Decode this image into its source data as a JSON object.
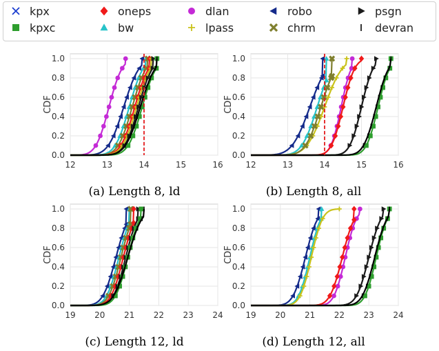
{
  "legend": {
    "entries": [
      {
        "key": "kpx",
        "label": "kpx",
        "color": "#1a3ccf",
        "marker": "x"
      },
      {
        "key": "kpxc",
        "label": "kpxc",
        "color": "#2e9e2e",
        "marker": "square"
      },
      {
        "key": "oneps",
        "label": "oneps",
        "color": "#f01a1a",
        "marker": "diamond"
      },
      {
        "key": "bw",
        "label": "bw",
        "color": "#27c3c9",
        "marker": "triangle-up"
      },
      {
        "key": "dlan",
        "label": "dlan",
        "color": "#c42ad6",
        "marker": "circle"
      },
      {
        "key": "lpass",
        "label": "lpass",
        "color": "#c9c21a",
        "marker": "plus"
      },
      {
        "key": "robo",
        "label": "robo",
        "color": "#142a8a",
        "marker": "triangle-left"
      },
      {
        "key": "chrm",
        "label": "chrm",
        "color": "#7f7f2e",
        "marker": "x-thick"
      },
      {
        "key": "psgn",
        "label": "psgn",
        "color": "#1a1a1a",
        "marker": "triangle-right"
      },
      {
        "key": "devran",
        "label": "devran",
        "color": "#000000",
        "marker": "vline"
      }
    ]
  },
  "chart_data": [
    {
      "type": "line",
      "caption": "(a) Length 8, ld",
      "ylabel": "CDF",
      "xlim": [
        12,
        16
      ],
      "ylim": [
        0,
        1.05
      ],
      "xticks": [
        "12",
        "13",
        "14",
        "15",
        "16"
      ],
      "yticks": [
        "0.0",
        "0.2",
        "0.4",
        "0.6",
        "0.8",
        "1.0"
      ],
      "reference_line": {
        "x": 14,
        "color": "#e31a1c"
      },
      "series": [
        {
          "key": "dlan",
          "mu": 13.05,
          "sigma": 0.28,
          "max": 13.5
        },
        {
          "key": "robo",
          "mu": 13.45,
          "sigma": 0.33,
          "max": 13.95
        },
        {
          "key": "bw",
          "mu": 13.6,
          "sigma": 0.3,
          "max": 14.05
        },
        {
          "key": "chrm",
          "mu": 13.68,
          "sigma": 0.3,
          "max": 14.1
        },
        {
          "key": "oneps",
          "mu": 13.75,
          "sigma": 0.3,
          "max": 14.15
        },
        {
          "key": "lpass",
          "mu": 13.8,
          "sigma": 0.3,
          "max": 14.2
        },
        {
          "key": "psgn",
          "mu": 13.85,
          "sigma": 0.3,
          "max": 14.25
        },
        {
          "key": "kpxc",
          "mu": 13.95,
          "sigma": 0.3,
          "max": 14.35
        },
        {
          "key": "devran",
          "mu": 13.9,
          "sigma": 0.32,
          "max": 14.35
        }
      ]
    },
    {
      "type": "line",
      "caption": "(b) Length 8, all",
      "ylabel": "CDF",
      "xlim": [
        12,
        16
      ],
      "ylim": [
        0,
        1.05
      ],
      "xticks": [
        "12",
        "13",
        "14",
        "15",
        "16"
      ],
      "yticks": [
        "0.0",
        "0.2",
        "0.4",
        "0.6",
        "0.8",
        "1.0"
      ],
      "reference_line": {
        "x": 14,
        "color": "#e31a1c"
      },
      "series": [
        {
          "key": "robo",
          "mu": 13.6,
          "sigma": 0.38,
          "max": 13.95
        },
        {
          "key": "bw",
          "mu": 13.8,
          "sigma": 0.33,
          "max": 14.05
        },
        {
          "key": "lpass",
          "mu": 14.0,
          "sigma": 0.38,
          "max": 14.6
        },
        {
          "key": "chrm",
          "mu": 13.9,
          "sigma": 0.33,
          "max": 14.2
        },
        {
          "key": "dlan",
          "mu": 14.45,
          "sigma": 0.22,
          "max": 14.75
        },
        {
          "key": "oneps",
          "mu": 14.5,
          "sigma": 0.25,
          "max": 15.0
        },
        {
          "key": "psgn",
          "mu": 15.0,
          "sigma": 0.25,
          "max": 15.4
        },
        {
          "key": "kpxc",
          "mu": 15.45,
          "sigma": 0.25,
          "max": 15.8
        },
        {
          "key": "devran",
          "mu": 15.4,
          "sigma": 0.27,
          "max": 15.8
        }
      ]
    },
    {
      "type": "line",
      "caption": "(c) Length 12, ld",
      "ylabel": "CDF",
      "xlim": [
        19,
        24
      ],
      "ylim": [
        0,
        1.05
      ],
      "xticks": [
        "19",
        "20",
        "21",
        "22",
        "23",
        "24"
      ],
      "yticks": [
        "0.0",
        "0.2",
        "0.4",
        "0.6",
        "0.8",
        "1.0"
      ],
      "series": [
        {
          "key": "robo",
          "mu": 20.55,
          "sigma": 0.35,
          "max": 20.9
        },
        {
          "key": "bw",
          "mu": 20.65,
          "sigma": 0.33,
          "max": 21.0
        },
        {
          "key": "chrm",
          "mu": 20.72,
          "sigma": 0.33,
          "max": 21.05
        },
        {
          "key": "oneps",
          "mu": 20.8,
          "sigma": 0.33,
          "max": 21.15
        },
        {
          "key": "psgn",
          "mu": 20.88,
          "sigma": 0.33,
          "max": 21.3
        },
        {
          "key": "kpxc",
          "mu": 20.95,
          "sigma": 0.33,
          "max": 21.4
        },
        {
          "key": "devran",
          "mu": 20.95,
          "sigma": 0.38,
          "max": 21.5
        }
      ]
    },
    {
      "type": "line",
      "caption": "(d) Length 12, all",
      "ylabel": "CDF",
      "xlim": [
        19,
        24
      ],
      "ylim": [
        0,
        1.05
      ],
      "xticks": [
        "19",
        "20",
        "21",
        "22",
        "23",
        "24"
      ],
      "yticks": [
        "0.0",
        "0.2",
        "0.4",
        "0.6",
        "0.8",
        "1.0"
      ],
      "series": [
        {
          "key": "robo",
          "mu": 20.85,
          "sigma": 0.33,
          "max": 21.3
        },
        {
          "key": "bw",
          "mu": 21.0,
          "sigma": 0.3,
          "max": 21.4
        },
        {
          "key": "lpass",
          "mu": 21.05,
          "sigma": 0.3,
          "max": 22.0
        },
        {
          "key": "dlan",
          "mu": 22.2,
          "sigma": 0.3,
          "max": 22.7
        },
        {
          "key": "oneps",
          "mu": 22.1,
          "sigma": 0.33,
          "max": 22.5
        },
        {
          "key": "psgn",
          "mu": 23.0,
          "sigma": 0.33,
          "max": 23.5
        },
        {
          "key": "kpxc",
          "mu": 23.25,
          "sigma": 0.3,
          "max": 23.7
        },
        {
          "key": "devran",
          "mu": 23.2,
          "sigma": 0.33,
          "max": 23.7
        }
      ]
    }
  ]
}
